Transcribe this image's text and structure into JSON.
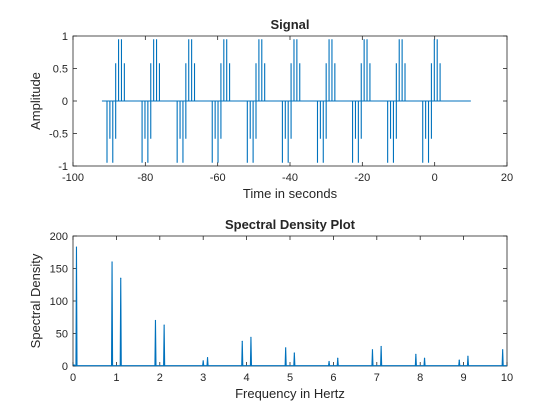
{
  "chart_data": [
    {
      "type": "line",
      "title": "Signal",
      "xlabel": "Time in seconds",
      "ylabel": "Amplitude",
      "xlim": [
        -100,
        20
      ],
      "ylim": [
        -1,
        1
      ],
      "xticks": [
        -100,
        -80,
        -60,
        -40,
        -20,
        0,
        20
      ],
      "yticks": [
        -1,
        -0.5,
        0,
        0.5,
        1
      ],
      "xtick_labels": [
        "-100",
        "-80",
        "-60",
        "-40",
        "-20",
        "0",
        "20"
      ],
      "ytick_labels": [
        "-1",
        "-0.5",
        "0",
        "0.5",
        "1"
      ],
      "grid": false,
      "color": "#0072BD",
      "signal": {
        "t_start": -92,
        "t_end": 10,
        "period": 10,
        "pulse_centers": [
          -87.0,
          -77.3,
          -67.6,
          -57.9,
          -48.2,
          -38.5,
          -28.8,
          -19.1,
          -9.4,
          0.3
        ],
        "pulse_half_width": 1.6,
        "upper_levels": [
          0.58,
          0.95,
          0.95,
          0.58
        ],
        "lower_levels": [
          -0.95,
          -0.58,
          -0.95,
          -0.58
        ]
      }
    },
    {
      "type": "line",
      "title": "Spectral Density Plot",
      "xlabel": "Frequency in Hertz",
      "ylabel": "Spectral Density",
      "xlim": [
        0,
        10
      ],
      "ylim": [
        0,
        200
      ],
      "xticks": [
        0,
        1,
        2,
        3,
        4,
        5,
        6,
        7,
        8,
        9,
        10
      ],
      "yticks": [
        0,
        50,
        100,
        150,
        200
      ],
      "xtick_labels": [
        "0",
        "1",
        "2",
        "3",
        "4",
        "5",
        "6",
        "7",
        "8",
        "9",
        "10"
      ],
      "ytick_labels": [
        "0",
        "50",
        "100",
        "150",
        "200"
      ],
      "grid": false,
      "color": "#0072BD",
      "peaks": [
        {
          "f": 0.08,
          "v": 183
        },
        {
          "f": 0.9,
          "v": 160
        },
        {
          "f": 1.1,
          "v": 135
        },
        {
          "f": 1.9,
          "v": 70
        },
        {
          "f": 2.1,
          "v": 63
        },
        {
          "f": 3.0,
          "v": 8
        },
        {
          "f": 3.1,
          "v": 13
        },
        {
          "f": 3.9,
          "v": 38
        },
        {
          "f": 4.1,
          "v": 44
        },
        {
          "f": 4.9,
          "v": 28
        },
        {
          "f": 5.1,
          "v": 20
        },
        {
          "f": 5.9,
          "v": 7
        },
        {
          "f": 6.1,
          "v": 12
        },
        {
          "f": 6.9,
          "v": 25
        },
        {
          "f": 7.1,
          "v": 30
        },
        {
          "f": 7.9,
          "v": 18
        },
        {
          "f": 8.1,
          "v": 12
        },
        {
          "f": 8.9,
          "v": 9
        },
        {
          "f": 9.1,
          "v": 15
        },
        {
          "f": 9.9,
          "v": 25
        }
      ]
    }
  ]
}
